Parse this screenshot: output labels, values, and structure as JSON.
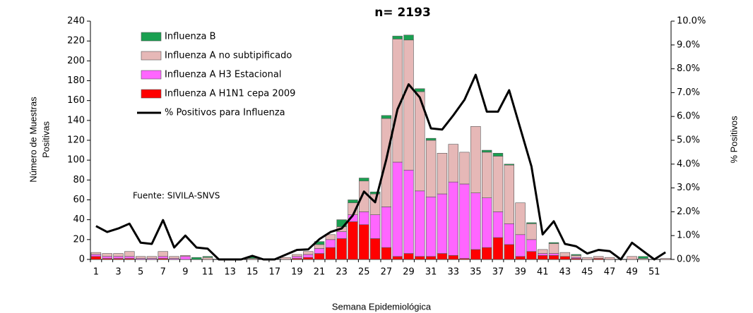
{
  "chart_data": {
    "type": "bar",
    "title": "n= 2193",
    "y_label": [
      "Número de Muestras",
      "Positivas"
    ],
    "y2_label": "% Positivos",
    "x_label": "Semana Epidemiológica",
    "annotation": "Fuente: SIVILA-SNVS",
    "stacked": true,
    "categories": [
      1,
      null,
      3,
      null,
      5,
      null,
      7,
      null,
      9,
      null,
      11,
      null,
      13,
      null,
      15,
      null,
      17,
      null,
      19,
      null,
      21,
      null,
      23,
      null,
      25,
      null,
      27,
      null,
      29,
      null,
      31,
      null,
      33,
      null,
      35,
      null,
      37,
      null,
      39,
      null,
      41,
      null,
      43,
      null,
      45,
      null,
      47,
      null,
      49,
      null,
      51,
      null
    ],
    "series": [
      {
        "name": "Influenza B",
        "color": "#1aa051",
        "values": [
          0,
          0,
          0,
          0,
          0,
          0,
          0,
          0,
          0,
          2,
          1,
          0,
          0,
          0,
          2,
          0,
          0,
          0,
          0,
          0,
          3,
          0,
          7,
          3,
          3,
          2,
          3,
          3,
          5,
          3,
          2,
          0,
          0,
          0,
          0,
          2,
          3,
          1,
          0,
          1,
          0,
          1,
          0,
          1,
          0,
          0,
          0,
          0,
          0,
          2,
          0,
          0
        ]
      },
      {
        "name": "Influenza A no subtipificado",
        "color": "#e6b8b7",
        "values": [
          2,
          3,
          3,
          5,
          2,
          2,
          5,
          2,
          1,
          0,
          2,
          0,
          0,
          0,
          1,
          0,
          0,
          2,
          2,
          3,
          4,
          5,
          5,
          12,
          31,
          21,
          89,
          124,
          131,
          100,
          57,
          41,
          38,
          32,
          67,
          46,
          56,
          59,
          32,
          16,
          4,
          10,
          4,
          2,
          2,
          2,
          2,
          0,
          3,
          1,
          0,
          1
        ]
      },
      {
        "name": "Influenza A H3 Estacional",
        "color": "#ff66ff",
        "values": [
          2,
          2,
          2,
          2,
          1,
          1,
          2,
          1,
          3,
          0,
          0,
          0,
          0,
          0,
          0,
          0,
          0,
          0,
          2,
          3,
          5,
          8,
          7,
          7,
          13,
          24,
          41,
          95,
          84,
          66,
          60,
          60,
          74,
          75,
          57,
          50,
          26,
          21,
          22,
          12,
          2,
          2,
          0,
          1,
          0,
          0,
          0,
          0,
          0,
          0,
          0,
          0
        ]
      },
      {
        "name": "Influenza A H1N1 cepa 2009",
        "color": "#ff0000",
        "values": [
          3,
          1,
          1,
          1,
          0,
          0,
          1,
          0,
          0,
          0,
          0,
          0,
          0,
          0,
          0,
          0,
          0,
          0,
          1,
          2,
          6,
          12,
          21,
          38,
          35,
          21,
          12,
          3,
          6,
          3,
          3,
          6,
          4,
          1,
          10,
          12,
          22,
          15,
          3,
          8,
          4,
          4,
          3,
          1,
          0,
          1,
          0,
          0,
          0,
          0,
          0,
          0
        ]
      },
      {
        "name": "% Positivos para Influenza",
        "color": "#000000",
        "axis": "y2",
        "type": "line",
        "values": [
          1.4,
          1.15,
          1.3,
          1.5,
          0.7,
          0.65,
          1.65,
          0.5,
          1.0,
          0.5,
          0.45,
          0,
          0,
          0,
          0.15,
          0,
          0,
          0.2,
          0.4,
          0.42,
          0.85,
          1.15,
          1.3,
          1.85,
          2.85,
          2.4,
          4.2,
          6.3,
          7.35,
          6.8,
          5.5,
          5.45,
          6.05,
          6.7,
          7.75,
          6.2,
          6.2,
          7.1,
          5.5,
          3.9,
          1.05,
          1.6,
          0.65,
          0.55,
          0.25,
          0.4,
          0.35,
          0,
          0.7,
          0.35,
          0,
          0.3
        ]
      }
    ],
    "ylim": [
      0,
      240
    ],
    "yticks": [
      0,
      20,
      40,
      60,
      80,
      100,
      120,
      140,
      160,
      180,
      200,
      220,
      240
    ],
    "y2lim": [
      0,
      10
    ],
    "y2ticks": [
      {
        "value": 0,
        "label": "0.0%"
      },
      {
        "value": 1,
        "label": "1.0%"
      },
      {
        "value": 2,
        "label": "2.0%"
      },
      {
        "value": 3,
        "label": "3.0%"
      },
      {
        "value": 4,
        "label": "4.0%"
      },
      {
        "value": 5,
        "label": "5.0%"
      },
      {
        "value": 6,
        "label": "6.0%"
      },
      {
        "value": 7,
        "label": "7.0%"
      },
      {
        "value": 8,
        "label": "8.0%"
      },
      {
        "value": 9,
        "label": "9.0%"
      },
      {
        "value": 10,
        "label": "10.0%"
      }
    ],
    "legend": "upper left"
  }
}
